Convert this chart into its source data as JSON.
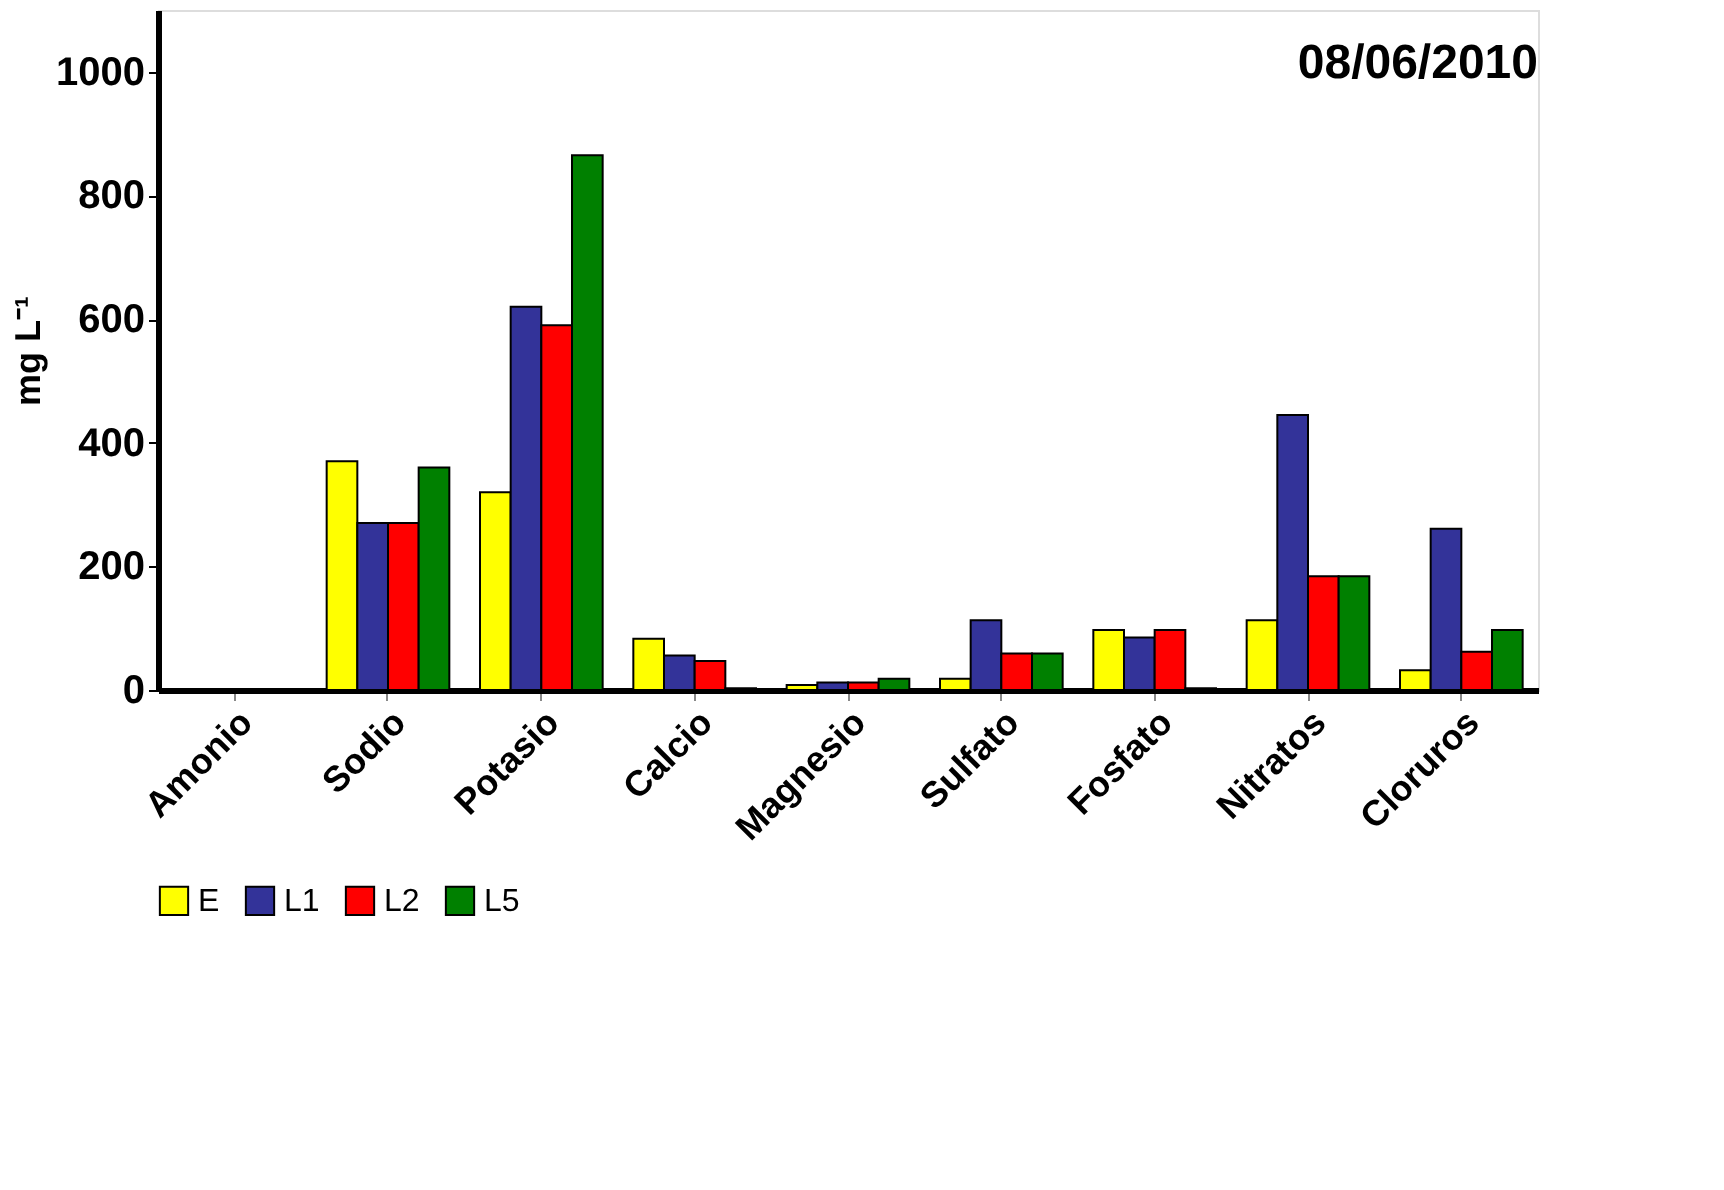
{
  "chart_data": {
    "type": "bar",
    "categories": [
      "Amonio",
      "Sodio",
      "Potasio",
      "Calcio",
      "Magnesio",
      "Sulfato",
      "Fosfato",
      "Nitratos",
      "Cloruros"
    ],
    "series": [
      {
        "name": "E",
        "color": "#ffff00",
        "values": [
          1,
          370,
          320,
          83,
          8,
          18,
          97,
          113,
          32
        ]
      },
      {
        "name": "L1",
        "color": "#333399",
        "values": [
          1,
          270,
          620,
          56,
          12,
          113,
          85,
          445,
          261
        ]
      },
      {
        "name": "L2",
        "color": "#ff0000",
        "values": [
          null,
          270,
          590,
          47,
          12,
          59,
          97,
          184,
          62
        ]
      },
      {
        "name": "L5",
        "color": "#008000",
        "values": [
          null,
          360,
          865,
          3,
          18,
          59,
          3,
          184,
          97
        ]
      }
    ],
    "ylabel": "mg L⁻¹",
    "ylim": [
      0,
      1100
    ],
    "yticks": [
      0,
      200,
      400,
      600,
      800,
      1000
    ],
    "annotations": [
      "08/06/2010"
    ],
    "grid": false,
    "legend": "bottom"
  }
}
